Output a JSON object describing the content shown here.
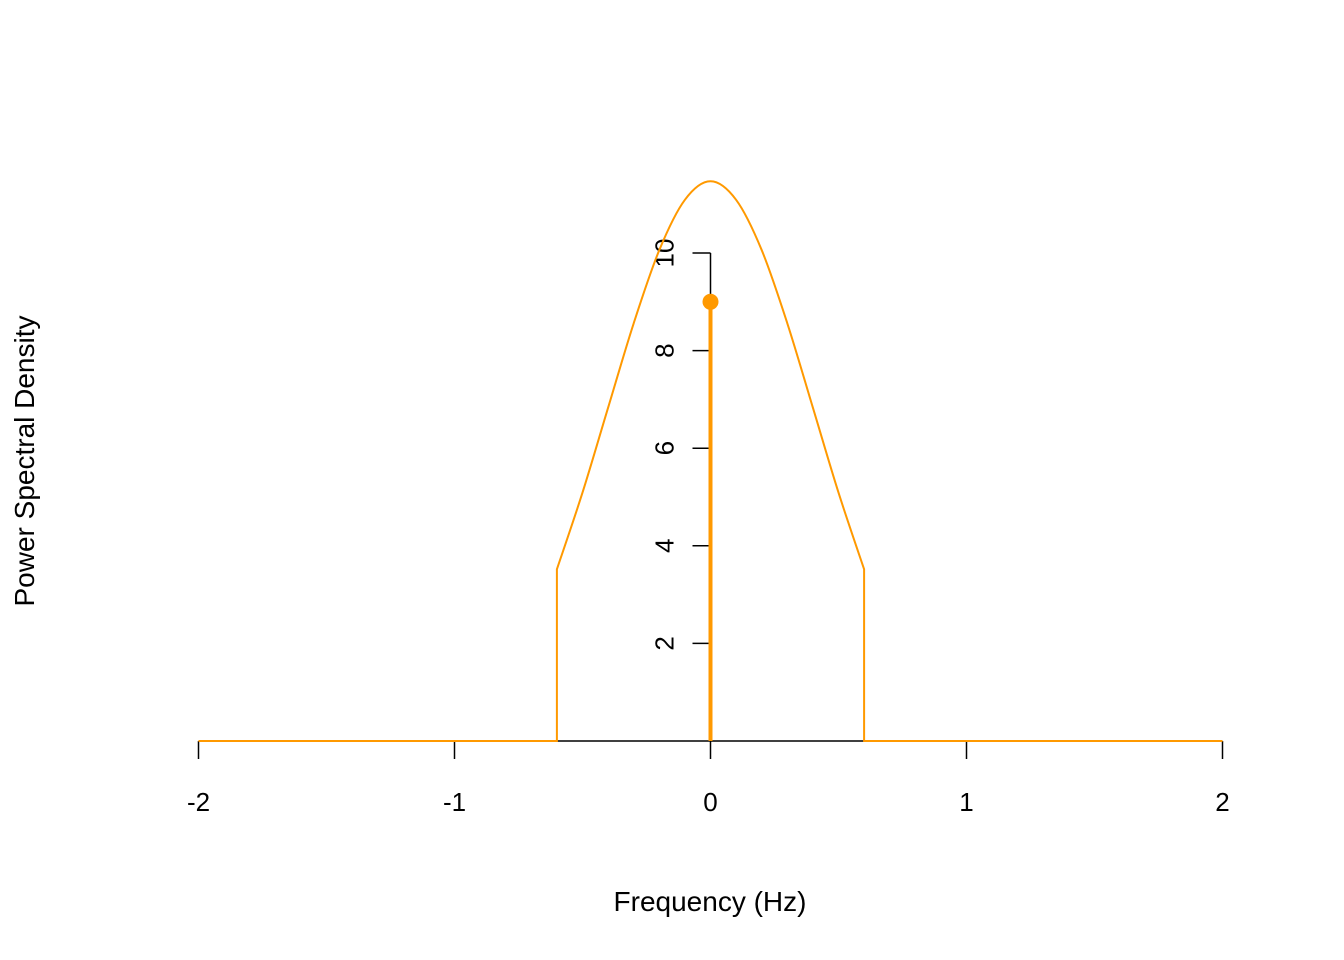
{
  "chart_data": {
    "type": "line",
    "title": "",
    "xlabel": "Frequency (Hz)",
    "ylabel": "Power Spectral Density",
    "xlim": [
      -2,
      2
    ],
    "ylim": [
      0,
      11.5
    ],
    "grid": false,
    "x_ticks": [
      "-2",
      "-1",
      "0",
      "1",
      "2"
    ],
    "y_ticks": [
      "2",
      "4",
      "6",
      "8",
      "10"
    ],
    "series": [
      {
        "kind": "curve",
        "color": "#FF9900",
        "x": [
          -2,
          -0.6,
          -0.6,
          -0.5,
          -0.4,
          -0.3,
          -0.2,
          -0.1,
          0,
          0.1,
          0.2,
          0.3,
          0.4,
          0.5,
          0.6,
          0.6,
          2
        ],
        "y": [
          0,
          0,
          3.52,
          5.09,
          6.83,
          8.56,
          10.06,
          11.09,
          11.47,
          11.09,
          10.06,
          8.56,
          6.83,
          5.09,
          3.52,
          0,
          0
        ]
      },
      {
        "kind": "spike",
        "color": "#FF9900",
        "x": [
          0
        ],
        "y": [
          9
        ]
      }
    ]
  }
}
